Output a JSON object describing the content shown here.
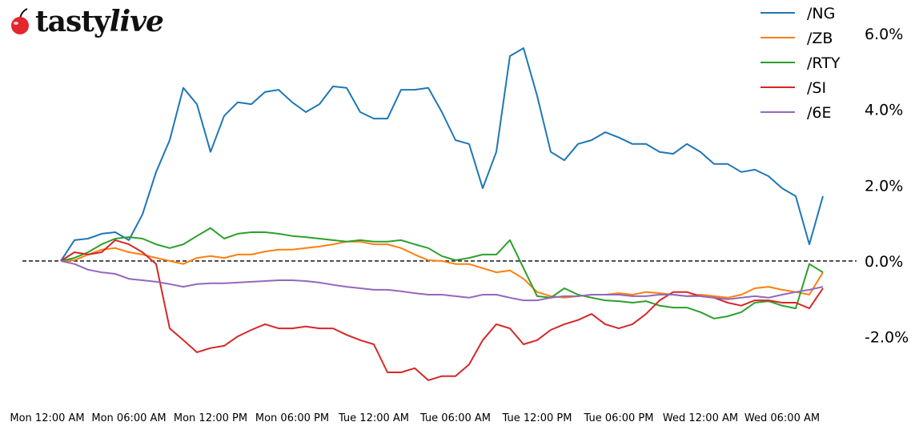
{
  "brand": {
    "logo_text": "tastylive",
    "logo_color": "#e3262f"
  },
  "chart_data": {
    "type": "line",
    "title": "",
    "xlabel": "",
    "ylabel": "",
    "yaxis_side": "right",
    "ylim": [
      -3.68,
      6.89
    ],
    "y_ticks": [
      6.0,
      4.0,
      2.0,
      0.0,
      -2.0
    ],
    "y_tick_labels": [
      "6.0%",
      "4.0%",
      "2.0%",
      "0.0%",
      "-2.0%"
    ],
    "zero_line": {
      "value": 0,
      "style": "dashed",
      "color": "#000000"
    },
    "x_tick_labels": [
      "Mon 12:00 AM",
      "Mon 06:00 AM",
      "Mon 12:00 PM",
      "Mon 06:00 PM",
      "Tue 12:00 AM",
      "Tue 06:00 AM",
      "Tue 12:00 PM",
      "Tue 06:00 PM",
      "Wed 12:00 AM",
      "Wed 06:00 AM"
    ],
    "x_range": [
      "Mon 00:00",
      "Wed 09:30"
    ],
    "grid": false,
    "legend_position": "top-right",
    "x": [
      "Mon 01:00",
      "Mon 02:00",
      "Mon 03:00",
      "Mon 04:00",
      "Mon 05:00",
      "Mon 06:00",
      "Mon 07:00",
      "Mon 08:00",
      "Mon 09:00",
      "Mon 10:00",
      "Mon 11:00",
      "Mon 12:00",
      "Mon 13:00",
      "Mon 14:00",
      "Mon 15:00",
      "Mon 16:00",
      "Mon 17:00",
      "Mon 18:00",
      "Mon 19:00",
      "Mon 20:00",
      "Mon 21:00",
      "Mon 22:00",
      "Mon 23:00",
      "Tue 00:00",
      "Tue 01:00",
      "Tue 02:00",
      "Tue 03:00",
      "Tue 04:00",
      "Tue 05:00",
      "Tue 06:00",
      "Tue 07:00",
      "Tue 08:00",
      "Tue 09:00",
      "Tue 10:00",
      "Tue 11:00",
      "Tue 12:00",
      "Tue 13:00",
      "Tue 14:00",
      "Tue 15:00",
      "Tue 16:00",
      "Tue 17:00",
      "Tue 18:00",
      "Tue 19:00",
      "Tue 20:00",
      "Tue 21:00",
      "Tue 22:00",
      "Tue 23:00",
      "Wed 00:00",
      "Wed 01:00",
      "Wed 02:00",
      "Wed 03:00",
      "Wed 04:00",
      "Wed 05:00",
      "Wed 06:00",
      "Wed 07:00",
      "Wed 08:00",
      "Wed 09:00"
    ],
    "series": [
      {
        "name": "/NG",
        "color": "#1f77b4",
        "values": [
          0.0,
          0.55,
          0.59,
          0.72,
          0.76,
          0.55,
          1.23,
          2.35,
          3.19,
          4.57,
          4.14,
          2.88,
          3.83,
          4.19,
          4.14,
          4.46,
          4.52,
          4.19,
          3.93,
          4.14,
          4.61,
          4.57,
          3.93,
          3.76,
          3.76,
          4.52,
          4.52,
          4.57,
          3.93,
          3.19,
          3.09,
          1.92,
          2.88,
          5.41,
          5.62,
          4.36,
          2.88,
          2.66,
          3.09,
          3.19,
          3.4,
          3.26,
          3.09,
          3.09,
          2.88,
          2.83,
          3.09,
          2.88,
          2.56,
          2.56,
          2.35,
          2.41,
          2.24,
          1.92,
          1.71,
          0.44,
          1.71
        ]
      },
      {
        "name": "/ZB",
        "color": "#ff7f0e",
        "values": [
          0,
          0.02,
          0.17,
          0.3,
          0.34,
          0.23,
          0.17,
          0.08,
          0,
          -0.08,
          0.08,
          0.13,
          0.08,
          0.17,
          0.17,
          0.25,
          0.3,
          0.3,
          0.34,
          0.38,
          0.44,
          0.51,
          0.51,
          0.44,
          0.44,
          0.34,
          0.17,
          0.02,
          0,
          -0.08,
          -0.08,
          -0.19,
          -0.3,
          -0.25,
          -0.47,
          -0.82,
          -0.93,
          -0.97,
          -0.93,
          -0.89,
          -0.89,
          -0.85,
          -0.89,
          -0.82,
          -0.85,
          -0.89,
          -0.93,
          -0.89,
          -0.93,
          -0.97,
          -0.89,
          -0.72,
          -0.68,
          -0.76,
          -0.82,
          -0.89,
          -0.3
        ]
      },
      {
        "name": "/RTY",
        "color": "#2ca02c",
        "values": [
          0,
          0.08,
          0.23,
          0.44,
          0.59,
          0.63,
          0.59,
          0.44,
          0.34,
          0.44,
          0.66,
          0.87,
          0.59,
          0.72,
          0.76,
          0.76,
          0.72,
          0.66,
          0.63,
          0.59,
          0.55,
          0.51,
          0.55,
          0.51,
          0.51,
          0.55,
          0.44,
          0.34,
          0.13,
          0.02,
          0.08,
          0.17,
          0.17,
          0.55,
          -0.19,
          -0.93,
          -0.97,
          -0.72,
          -0.89,
          -0.97,
          -1.04,
          -1.06,
          -1.1,
          -1.06,
          -1.18,
          -1.23,
          -1.23,
          -1.35,
          -1.52,
          -1.46,
          -1.35,
          -1.1,
          -1.06,
          -1.18,
          -1.25,
          -0.08,
          -0.3
        ]
      },
      {
        "name": "/SI",
        "color": "#d62728",
        "values": [
          0,
          0.23,
          0.17,
          0.23,
          0.55,
          0.44,
          0.23,
          -0.08,
          -1.78,
          -2.09,
          -2.41,
          -2.3,
          -2.24,
          -1.99,
          -1.82,
          -1.67,
          -1.78,
          -1.78,
          -1.73,
          -1.78,
          -1.78,
          -1.95,
          -2.09,
          -2.2,
          -2.94,
          -2.94,
          -2.83,
          -3.15,
          -3.04,
          -3.04,
          -2.73,
          -2.09,
          -1.67,
          -1.78,
          -2.2,
          -2.09,
          -1.82,
          -1.67,
          -1.56,
          -1.4,
          -1.67,
          -1.78,
          -1.67,
          -1.4,
          -1.04,
          -0.82,
          -0.82,
          -0.93,
          -0.97,
          -1.1,
          -1.18,
          -1.04,
          -1.04,
          -1.1,
          -1.1,
          -1.25,
          -0.72
        ]
      },
      {
        "name": "/6E",
        "color": "#9467bd",
        "values": [
          0,
          -0.08,
          -0.23,
          -0.3,
          -0.34,
          -0.47,
          -0.51,
          -0.55,
          -0.61,
          -0.68,
          -0.61,
          -0.59,
          -0.59,
          -0.57,
          -0.55,
          -0.53,
          -0.51,
          -0.51,
          -0.53,
          -0.57,
          -0.63,
          -0.68,
          -0.72,
          -0.76,
          -0.76,
          -0.8,
          -0.85,
          -0.89,
          -0.89,
          -0.93,
          -0.97,
          -0.89,
          -0.89,
          -0.97,
          -1.04,
          -1.04,
          -0.97,
          -0.93,
          -0.93,
          -0.89,
          -0.89,
          -0.89,
          -0.93,
          -0.93,
          -0.89,
          -0.89,
          -0.93,
          -0.93,
          -0.97,
          -1.01,
          -0.97,
          -0.93,
          -0.97,
          -0.89,
          -0.82,
          -0.76,
          -0.68
        ]
      }
    ]
  }
}
